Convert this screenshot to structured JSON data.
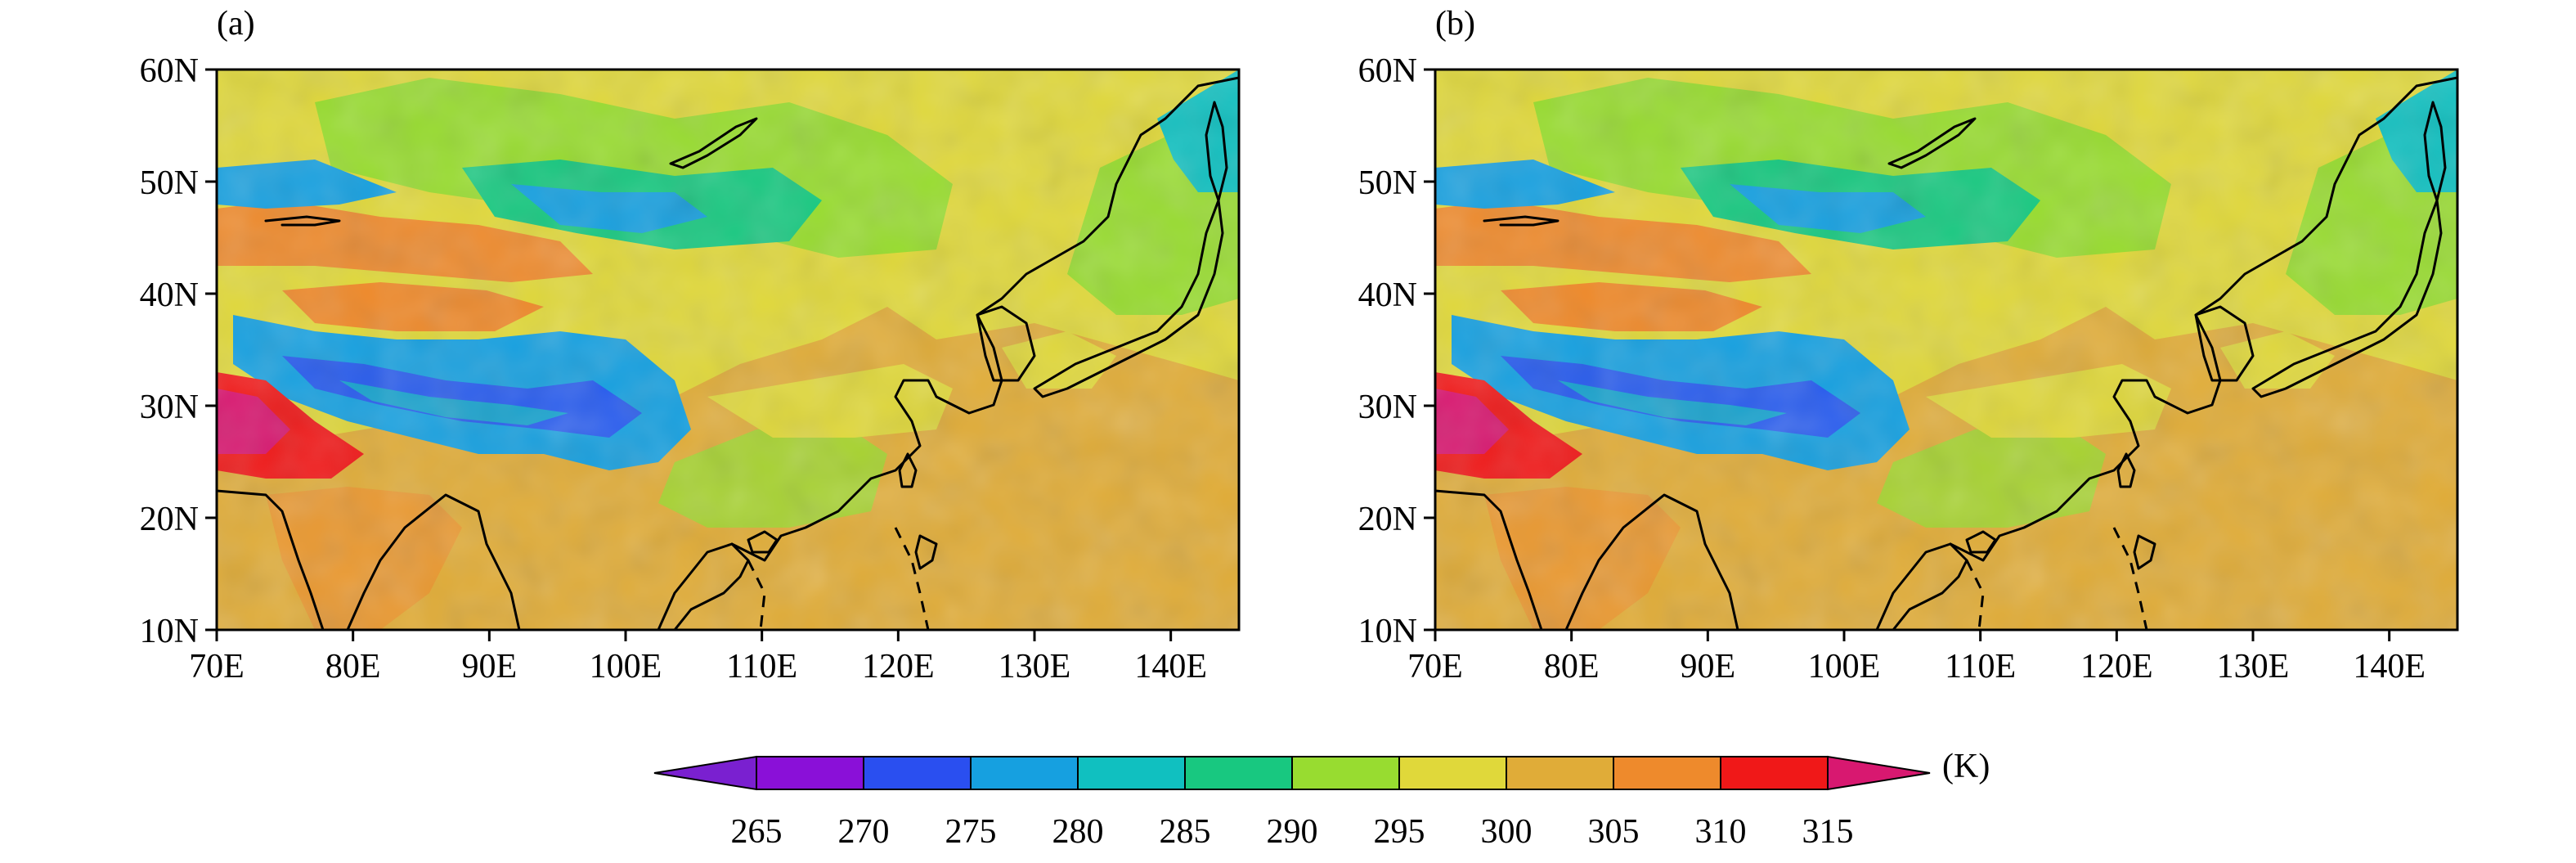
{
  "panels": [
    {
      "label": "(a)"
    },
    {
      "label": "(b)"
    }
  ],
  "axes": {
    "lon_ticks": [
      "70E",
      "80E",
      "90E",
      "100E",
      "110E",
      "120E",
      "130E",
      "140E"
    ],
    "lat_ticks": [
      "60N",
      "50N",
      "40N",
      "30N",
      "20N",
      "10N"
    ],
    "lon_range": [
      70,
      145
    ],
    "lat_range": [
      10,
      60
    ]
  },
  "colorbar": {
    "unit": "(K)",
    "ticks": [
      "265",
      "270",
      "275",
      "280",
      "285",
      "290",
      "295",
      "300",
      "305",
      "310",
      "315"
    ],
    "colors": [
      "#7a20d0",
      "#8a10d8",
      "#2a4ff0",
      "#16a0e0",
      "#10c0c0",
      "#18c880",
      "#98dc30",
      "#e0d83a",
      "#e0ac38",
      "#ee8a2c",
      "#f01818",
      "#d81870"
    ]
  },
  "chart_data": {
    "type": "heatmap",
    "description_units": "K",
    "levels": [
      265,
      270,
      275,
      280,
      285,
      290,
      295,
      300,
      305,
      310,
      315
    ],
    "x_range": [
      70,
      145
    ],
    "y_range": [
      10,
      60
    ]
  }
}
